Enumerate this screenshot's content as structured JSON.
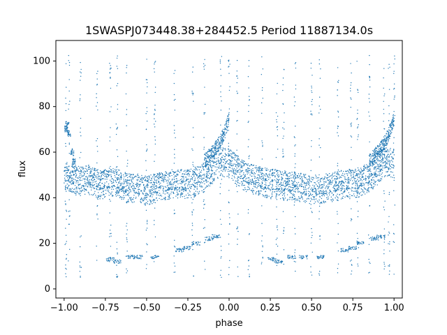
{
  "chart_data": {
    "type": "scatter",
    "title": "1SWASPJ073448.38+284452.5 Period 11887134.0s",
    "xlabel": "phase",
    "ylabel": "flux",
    "xlim": [
      -1.05,
      1.05
    ],
    "ylim": [
      -4,
      109
    ],
    "xticks": [
      -1.0,
      -0.75,
      -0.5,
      -0.25,
      0.0,
      0.25,
      0.5,
      0.75,
      1.0
    ],
    "xtick_labels": [
      "−1.00",
      "−0.75",
      "−0.50",
      "−0.25",
      "0.00",
      "0.25",
      "0.50",
      "0.75",
      "1.00"
    ],
    "yticks": [
      0,
      20,
      40,
      60,
      80,
      100
    ],
    "ytick_labels": [
      "0",
      "20",
      "40",
      "60",
      "80",
      "100"
    ],
    "grid": false,
    "marker_color": "#1f77b4",
    "series": [
      {
        "values_main_band": [
          [
            -1.0,
            52
          ],
          [
            -0.97,
            51
          ],
          [
            -0.94,
            50
          ],
          [
            -0.9,
            49
          ],
          [
            -0.85,
            50
          ],
          [
            -0.8,
            48
          ],
          [
            -0.75,
            48
          ],
          [
            -0.7,
            49
          ],
          [
            -0.65,
            47
          ],
          [
            -0.6,
            46
          ],
          [
            -0.55,
            46
          ],
          [
            -0.5,
            45
          ],
          [
            -0.45,
            46
          ],
          [
            -0.4,
            47
          ],
          [
            -0.35,
            48
          ],
          [
            -0.3,
            48
          ],
          [
            -0.25,
            48
          ],
          [
            -0.2,
            49
          ],
          [
            -0.15,
            51
          ],
          [
            -0.1,
            54
          ],
          [
            -0.05,
            58
          ],
          [
            0.0,
            57
          ],
          [
            0.05,
            54
          ],
          [
            0.1,
            51
          ],
          [
            0.15,
            50
          ],
          [
            0.2,
            49
          ],
          [
            0.25,
            48
          ],
          [
            0.3,
            48
          ],
          [
            0.35,
            47
          ],
          [
            0.4,
            47
          ],
          [
            0.45,
            46
          ],
          [
            0.5,
            45
          ],
          [
            0.55,
            46
          ],
          [
            0.6,
            46
          ],
          [
            0.65,
            47
          ],
          [
            0.7,
            48
          ],
          [
            0.75,
            48
          ],
          [
            0.8,
            49
          ],
          [
            0.85,
            51
          ],
          [
            0.9,
            54
          ],
          [
            0.95,
            58
          ],
          [
            1.0,
            57
          ]
        ],
        "values_upper_arc": [
          [
            -0.15,
            56
          ],
          [
            -0.1,
            60
          ],
          [
            -0.05,
            65
          ],
          [
            -0.02,
            70
          ],
          [
            0.0,
            75
          ],
          [
            0.85,
            56
          ],
          [
            0.9,
            60
          ],
          [
            0.95,
            65
          ],
          [
            0.98,
            70
          ],
          [
            1.0,
            75
          ]
        ],
        "values_lower_band": [
          [
            -0.72,
            13
          ],
          [
            -0.68,
            12
          ],
          [
            -0.6,
            14
          ],
          [
            -0.55,
            14
          ],
          [
            -0.45,
            14
          ],
          [
            -0.3,
            17
          ],
          [
            -0.25,
            18
          ],
          [
            -0.2,
            20
          ],
          [
            -0.12,
            22
          ],
          [
            -0.08,
            23
          ],
          [
            0.26,
            13
          ],
          [
            0.3,
            12
          ],
          [
            0.38,
            14
          ],
          [
            0.45,
            14
          ],
          [
            0.55,
            14
          ],
          [
            0.7,
            17
          ],
          [
            0.75,
            18
          ],
          [
            0.8,
            20
          ],
          [
            0.88,
            22
          ],
          [
            0.92,
            23
          ]
        ],
        "values_left_cluster": [
          [
            -0.99,
            70
          ],
          [
            -0.98,
            72
          ],
          [
            -0.97,
            68
          ],
          [
            -0.95,
            60
          ],
          [
            -0.94,
            56
          ]
        ]
      }
    ]
  }
}
